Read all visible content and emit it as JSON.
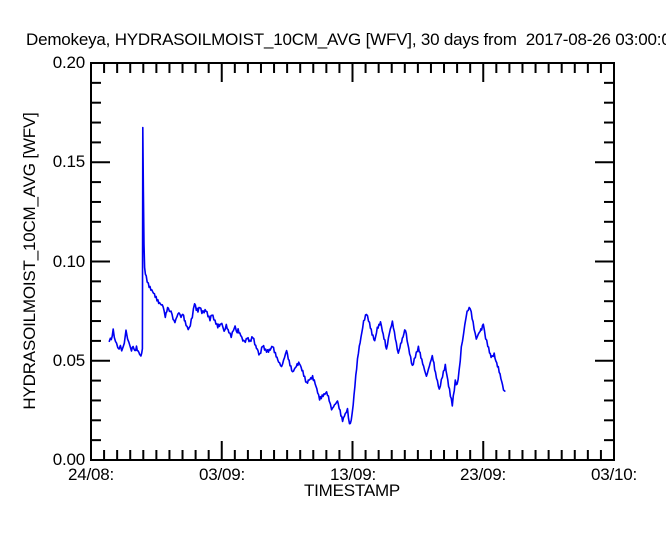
{
  "chart_data": {
    "type": "line",
    "title": "Demokeya, HYDRASOILMOIST_10CM_AVG [WFV], 30 days from  2017-08-26 03:00:0",
    "xlabel": "TIMESTAMP",
    "ylabel": "HYDRASOILMOIST_10CM_AVG [WFV]",
    "legend_position": "none",
    "grid": false,
    "frame": "box-with-inward-ticks",
    "axis_color": "#000000",
    "background_color": "#ffffff",
    "x_axis": {
      "range_days_from_24_08": [
        0,
        40
      ],
      "tick_labels": [
        "24/08:",
        "03/09:",
        "13/09:",
        "23/09:",
        "03/10:"
      ],
      "major_tick_days": [
        0,
        10,
        20,
        30,
        40
      ],
      "minor_tick_interval_days": 1
    },
    "y_axis": {
      "range": [
        0.0,
        0.2
      ],
      "tick_labels": [
        "0.00",
        "0.05",
        "0.10",
        "0.15",
        "0.20"
      ],
      "major_ticks": [
        0.0,
        0.05,
        0.1,
        0.15,
        0.2
      ],
      "minor_tick_interval": 0.01
    },
    "series": [
      {
        "name": "HYDRASOILMOIST_10CM_AVG [WFV]",
        "color": "#0000f2",
        "points_day_value": [
          [
            1.4,
            0.059
          ],
          [
            1.48,
            0.0618
          ],
          [
            1.55,
            0.06
          ],
          [
            1.62,
            0.0628
          ],
          [
            1.7,
            0.0655
          ],
          [
            1.78,
            0.0625
          ],
          [
            1.87,
            0.06
          ],
          [
            1.95,
            0.0588
          ],
          [
            2.05,
            0.057
          ],
          [
            2.15,
            0.0558
          ],
          [
            2.25,
            0.0572
          ],
          [
            2.35,
            0.0558
          ],
          [
            2.45,
            0.0565
          ],
          [
            2.55,
            0.0582
          ],
          [
            2.68,
            0.0655
          ],
          [
            2.8,
            0.062
          ],
          [
            2.9,
            0.0585
          ],
          [
            3.0,
            0.057
          ],
          [
            3.1,
            0.0558
          ],
          [
            3.22,
            0.0575
          ],
          [
            3.35,
            0.0545
          ],
          [
            3.48,
            0.0563
          ],
          [
            3.6,
            0.055
          ],
          [
            3.72,
            0.0538
          ],
          [
            3.82,
            0.0528
          ],
          [
            3.88,
            0.0545
          ],
          [
            3.93,
            0.056
          ],
          [
            3.96,
            0.1675
          ],
          [
            4.01,
            0.135
          ],
          [
            4.05,
            0.108
          ],
          [
            4.1,
            0.097
          ],
          [
            4.22,
            0.092
          ],
          [
            4.38,
            0.0888
          ],
          [
            4.58,
            0.0858
          ],
          [
            4.78,
            0.0838
          ],
          [
            4.98,
            0.0818
          ],
          [
            5.18,
            0.0798
          ],
          [
            5.38,
            0.0783
          ],
          [
            5.52,
            0.0773
          ],
          [
            5.68,
            0.0723
          ],
          [
            5.8,
            0.075
          ],
          [
            5.92,
            0.0768
          ],
          [
            6.0,
            0.0743
          ],
          [
            6.12,
            0.0758
          ],
          [
            6.28,
            0.071
          ],
          [
            6.42,
            0.0698
          ],
          [
            6.58,
            0.072
          ],
          [
            6.72,
            0.0743
          ],
          [
            6.88,
            0.0715
          ],
          [
            7.02,
            0.0733
          ],
          [
            7.2,
            0.07
          ],
          [
            7.35,
            0.0672
          ],
          [
            7.52,
            0.0658
          ],
          [
            7.75,
            0.072
          ],
          [
            7.92,
            0.0793
          ],
          [
            8.05,
            0.076
          ],
          [
            8.18,
            0.0748
          ],
          [
            8.32,
            0.0768
          ],
          [
            8.48,
            0.0743
          ],
          [
            8.65,
            0.0752
          ],
          [
            8.8,
            0.0758
          ],
          [
            8.95,
            0.073
          ],
          [
            9.1,
            0.0708
          ],
          [
            9.25,
            0.0733
          ],
          [
            9.48,
            0.0695
          ],
          [
            9.7,
            0.0668
          ],
          [
            9.88,
            0.0685
          ],
          [
            10.0,
            0.0693
          ],
          [
            10.18,
            0.0648
          ],
          [
            10.35,
            0.0673
          ],
          [
            10.55,
            0.064
          ],
          [
            10.72,
            0.0622
          ],
          [
            10.9,
            0.066
          ],
          [
            11.02,
            0.0683
          ],
          [
            11.12,
            0.0643
          ],
          [
            11.25,
            0.0658
          ],
          [
            11.45,
            0.063
          ],
          [
            11.62,
            0.0608
          ],
          [
            11.8,
            0.0595
          ],
          [
            11.95,
            0.0615
          ],
          [
            12.15,
            0.0592
          ],
          [
            12.38,
            0.062
          ],
          [
            12.6,
            0.057
          ],
          [
            12.9,
            0.0532
          ],
          [
            13.13,
            0.0582
          ],
          [
            13.35,
            0.0555
          ],
          [
            13.51,
            0.0547
          ],
          [
            13.7,
            0.056
          ],
          [
            13.89,
            0.0572
          ],
          [
            14.1,
            0.053
          ],
          [
            14.35,
            0.05
          ],
          [
            14.58,
            0.0472
          ],
          [
            14.8,
            0.052
          ],
          [
            14.96,
            0.0548
          ],
          [
            15.15,
            0.05
          ],
          [
            15.42,
            0.0442
          ],
          [
            15.7,
            0.047
          ],
          [
            15.95,
            0.0492
          ],
          [
            16.2,
            0.044
          ],
          [
            16.49,
            0.0382
          ],
          [
            16.75,
            0.041
          ],
          [
            16.95,
            0.0422
          ],
          [
            17.2,
            0.037
          ],
          [
            17.48,
            0.0307
          ],
          [
            17.75,
            0.033
          ],
          [
            18.02,
            0.0342
          ],
          [
            18.22,
            0.03
          ],
          [
            18.4,
            0.0257
          ],
          [
            18.62,
            0.028
          ],
          [
            18.85,
            0.0297
          ],
          [
            19.05,
            0.025
          ],
          [
            19.24,
            0.0196
          ],
          [
            19.45,
            0.023
          ],
          [
            19.62,
            0.0257
          ],
          [
            19.77,
            0.0181
          ],
          [
            19.9,
            0.02
          ],
          [
            20.05,
            0.028
          ],
          [
            20.25,
            0.042
          ],
          [
            20.45,
            0.054
          ],
          [
            20.65,
            0.062
          ],
          [
            20.85,
            0.07
          ],
          [
            21.07,
            0.0743
          ],
          [
            21.3,
            0.069
          ],
          [
            21.5,
            0.064
          ],
          [
            21.7,
            0.0598
          ],
          [
            21.9,
            0.066
          ],
          [
            22.14,
            0.0698
          ],
          [
            22.35,
            0.063
          ],
          [
            22.6,
            0.0558
          ],
          [
            22.82,
            0.064
          ],
          [
            23.05,
            0.0693
          ],
          [
            23.28,
            0.061
          ],
          [
            23.5,
            0.0532
          ],
          [
            23.75,
            0.06
          ],
          [
            24.05,
            0.0658
          ],
          [
            24.3,
            0.056
          ],
          [
            24.58,
            0.0467
          ],
          [
            24.8,
            0.052
          ],
          [
            25.04,
            0.0572
          ],
          [
            25.3,
            0.05
          ],
          [
            25.65,
            0.0417
          ],
          [
            25.88,
            0.047
          ],
          [
            26.1,
            0.0522
          ],
          [
            26.35,
            0.044
          ],
          [
            26.64,
            0.0357
          ],
          [
            26.88,
            0.042
          ],
          [
            27.1,
            0.0472
          ],
          [
            27.35,
            0.038
          ],
          [
            27.63,
            0.0281
          ],
          [
            27.86,
            0.04
          ],
          [
            28.0,
            0.038
          ],
          [
            28.15,
            0.045
          ],
          [
            28.32,
            0.056
          ],
          [
            28.5,
            0.064
          ],
          [
            28.68,
            0.072
          ],
          [
            28.85,
            0.0758
          ],
          [
            29.0,
            0.0768
          ],
          [
            29.15,
            0.072
          ],
          [
            29.3,
            0.0668
          ],
          [
            29.47,
            0.0608
          ],
          [
            29.7,
            0.064
          ],
          [
            30.0,
            0.0683
          ],
          [
            30.18,
            0.062
          ],
          [
            30.35,
            0.0572
          ],
          [
            30.6,
            0.0522
          ],
          [
            30.84,
            0.0532
          ],
          [
            31.15,
            0.046
          ],
          [
            31.35,
            0.041
          ],
          [
            31.55,
            0.036
          ],
          [
            31.65,
            0.0347
          ]
        ]
      }
    ]
  }
}
